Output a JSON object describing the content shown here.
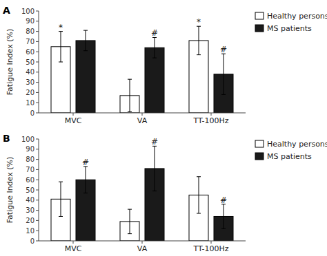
{
  "chart_data": [
    {
      "type": "bar",
      "title": "A",
      "y_label": "Fatigue Index (%)",
      "categories": [
        "MVC",
        "VA",
        "TT-100Hz"
      ],
      "series": [
        {
          "name": "Healthy persons",
          "color": "#ffffff",
          "values": [
            65,
            17,
            71
          ],
          "errors": [
            15,
            16,
            14
          ],
          "annotations": [
            "*",
            null,
            "*"
          ]
        },
        {
          "name": "MS patients",
          "color": "#1a1a1a",
          "values": [
            71,
            64,
            38
          ],
          "errors": [
            10,
            10,
            20
          ],
          "annotations": [
            null,
            "#",
            "#"
          ]
        }
      ],
      "ylim": [
        0,
        100
      ],
      "yticks": [
        0,
        10,
        20,
        30,
        40,
        50,
        60,
        70,
        80,
        90,
        100
      ],
      "grid": false,
      "legend": "right"
    },
    {
      "type": "bar",
      "title": "B",
      "y_label": "Fatigue Index (%)",
      "categories": [
        "MVC",
        "VA",
        "TT-100Hz"
      ],
      "series": [
        {
          "name": "Healthy persons",
          "color": "#ffffff",
          "values": [
            41,
            19,
            45
          ],
          "errors": [
            17,
            12,
            18
          ],
          "annotations": [
            null,
            null,
            null
          ]
        },
        {
          "name": "MS patients",
          "color": "#1a1a1a",
          "values": [
            60,
            71,
            24
          ],
          "errors": [
            13,
            22,
            12
          ],
          "annotations": [
            "#",
            "#",
            "#"
          ]
        }
      ],
      "ylim": [
        0,
        100
      ],
      "yticks": [
        0,
        10,
        20,
        30,
        40,
        50,
        60,
        70,
        80,
        90,
        100
      ],
      "grid": false,
      "legend": "right"
    }
  ]
}
